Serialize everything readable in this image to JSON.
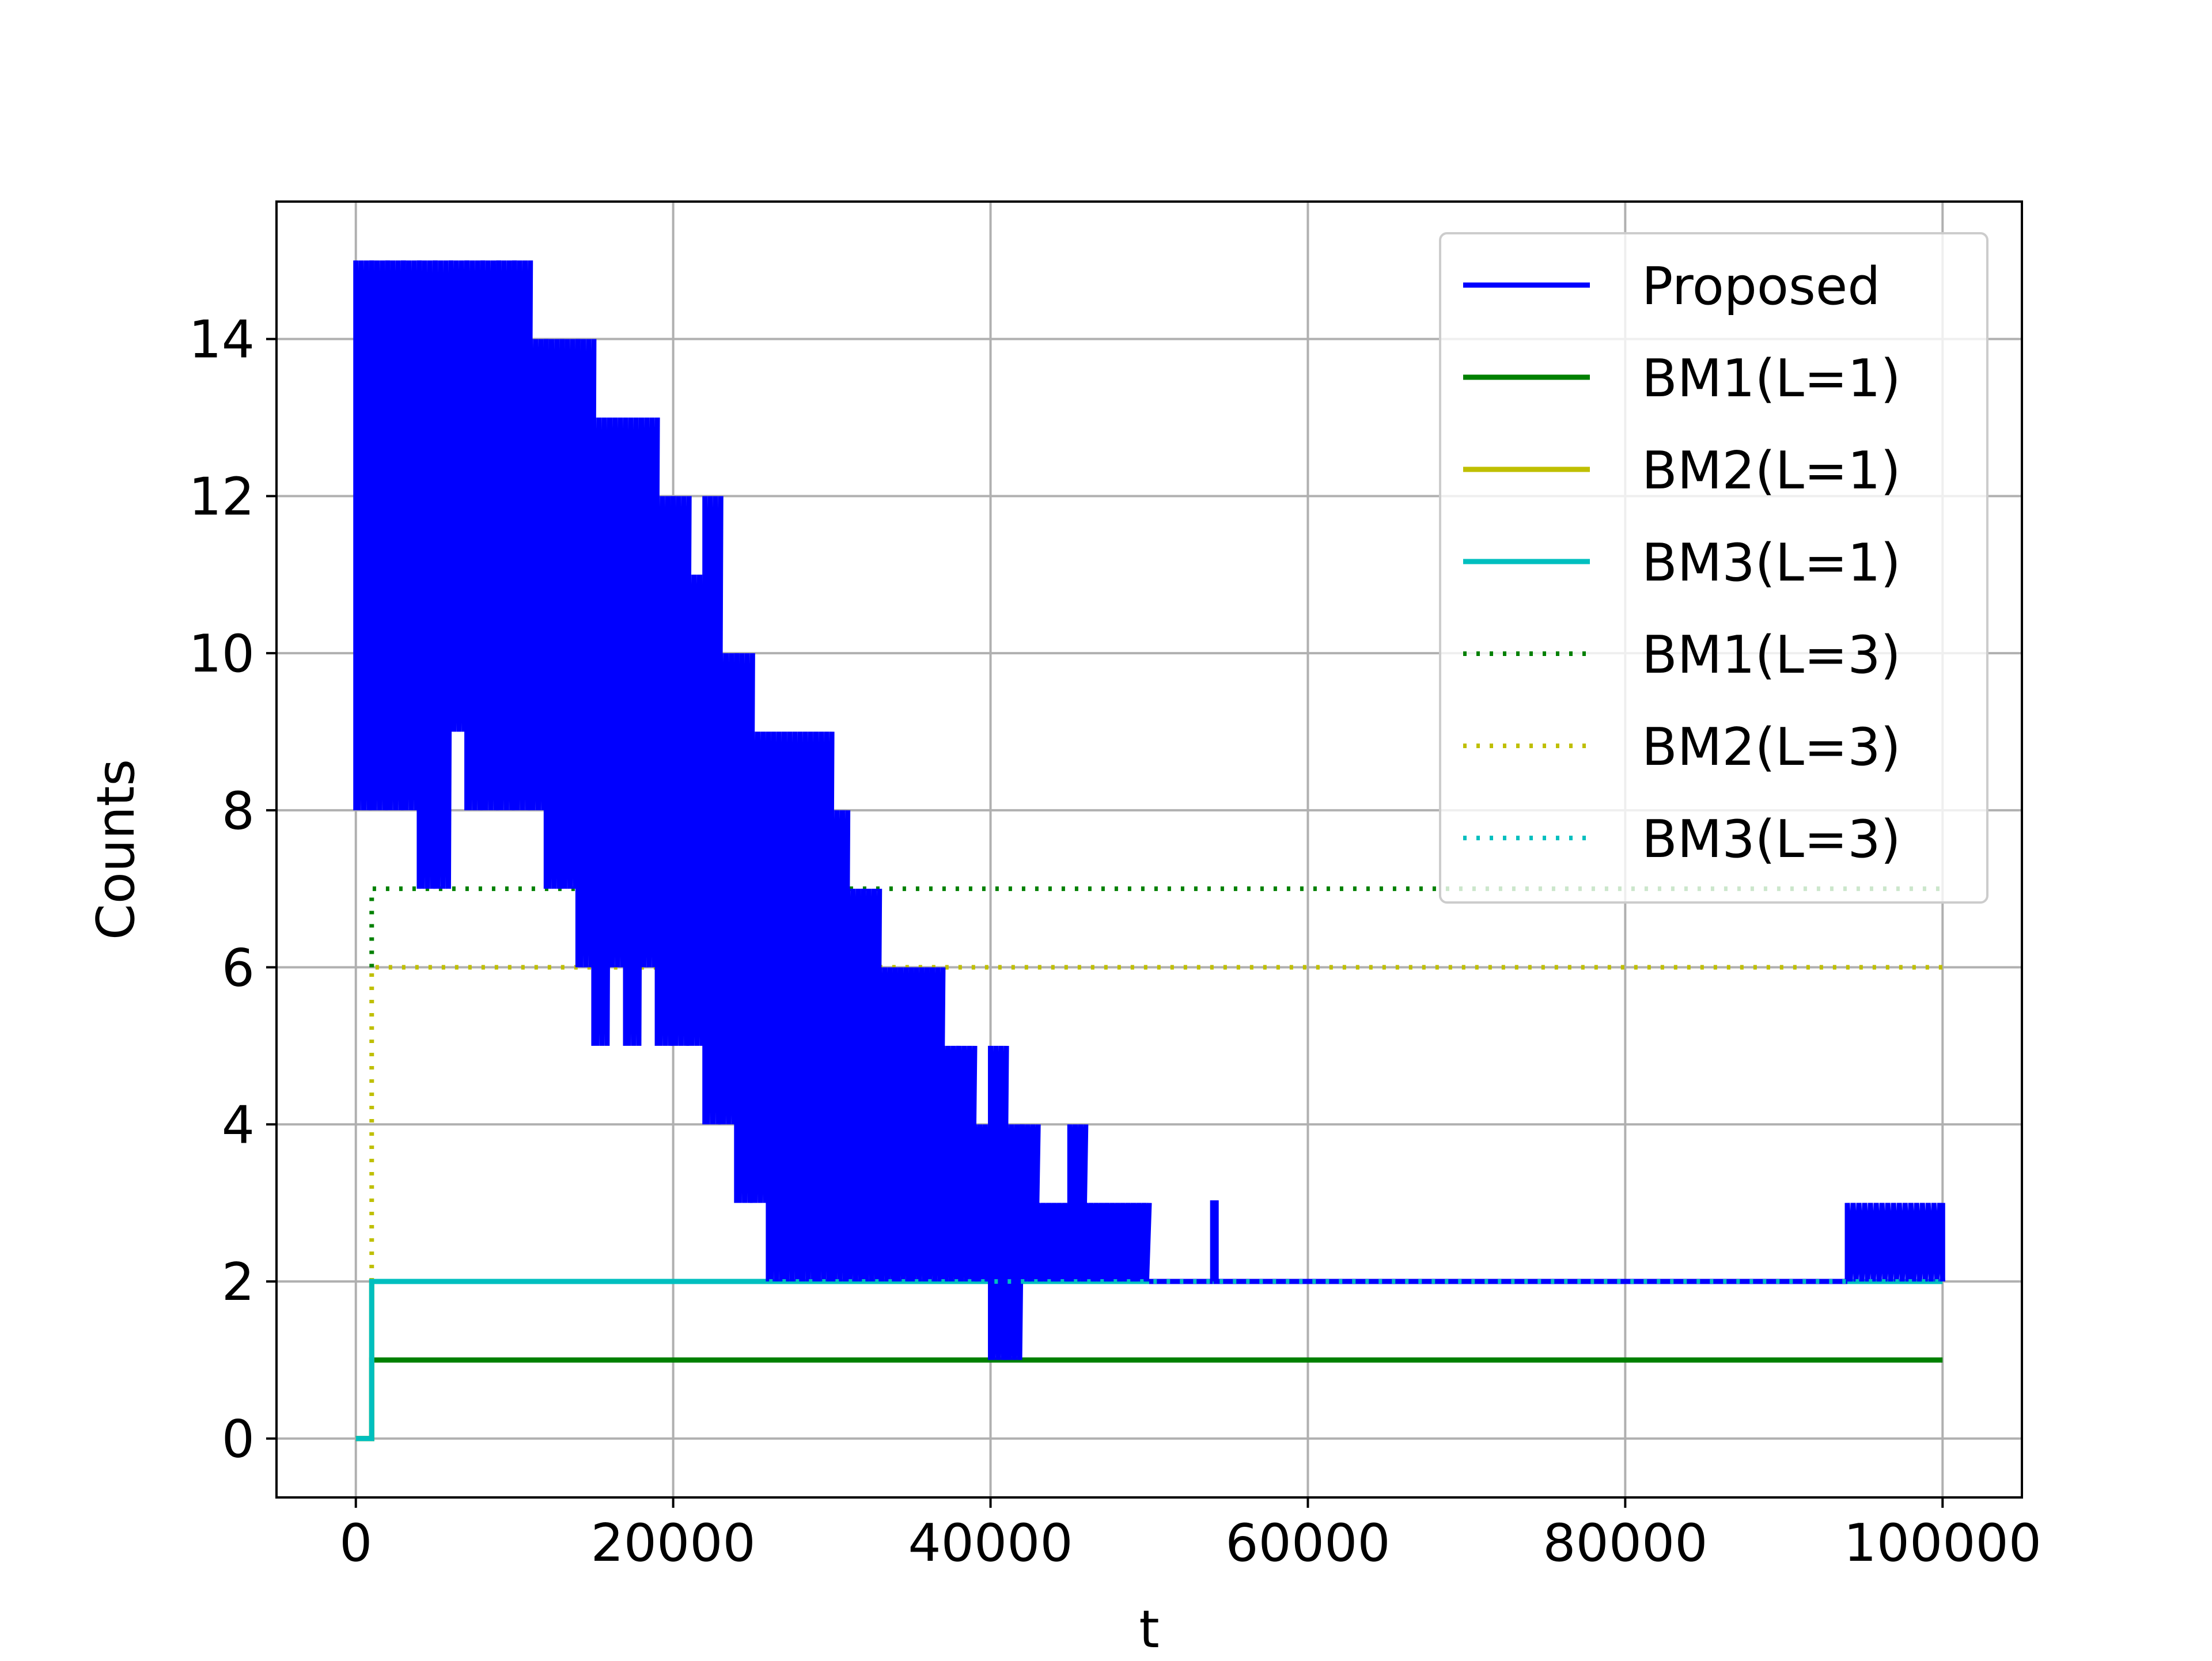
{
  "chart_data": {
    "type": "line",
    "title": "",
    "xlabel": "t",
    "ylabel": "Counts",
    "xlim": [
      -5000,
      105000
    ],
    "ylim": [
      -0.75,
      15.75
    ],
    "xticks": [
      0,
      20000,
      40000,
      60000,
      80000,
      100000
    ],
    "xtick_labels": [
      "0",
      "20000",
      "40000",
      "60000",
      "80000",
      "100000"
    ],
    "yticks": [
      0,
      2,
      4,
      6,
      8,
      10,
      12,
      14
    ],
    "ytick_labels": [
      "0",
      "2",
      "4",
      "6",
      "8",
      "10",
      "12",
      "14"
    ],
    "grid": true,
    "legend_position": "upper right",
    "series": [
      {
        "name": "Proposed",
        "color": "#0000ff",
        "style": "solid",
        "envelope_x": [
          0,
          1000,
          2000,
          3000,
          4000,
          5000,
          6000,
          7000,
          8000,
          9000,
          10000,
          11000,
          12000,
          13000,
          14000,
          15000,
          16000,
          17000,
          18000,
          19000,
          20000,
          21000,
          22000,
          23000,
          24000,
          25000,
          26000,
          27000,
          28000,
          29000,
          30000,
          31000,
          32000,
          33000,
          34000,
          35000,
          36000,
          37000,
          38000,
          39000,
          40000,
          41000,
          42000,
          43000,
          44000,
          45000,
          46000,
          47000,
          48000,
          49000,
          50000,
          54000,
          94000,
          98000,
          100000
        ],
        "envelope_max": [
          15,
          15,
          15,
          15,
          15,
          15,
          15,
          15,
          15,
          15,
          15,
          14,
          14,
          14,
          14,
          13,
          13,
          13,
          13,
          12,
          12,
          11,
          12,
          10,
          10,
          9,
          9,
          9,
          9,
          9,
          8,
          7,
          7,
          6,
          6,
          6,
          6,
          5,
          5,
          4,
          5,
          4,
          4,
          3,
          3,
          4,
          3,
          3,
          3,
          3,
          2,
          3,
          3,
          3,
          3
        ],
        "envelope_min": [
          8,
          8,
          8,
          8,
          7,
          7,
          9,
          8,
          8,
          8,
          8,
          8,
          7,
          7,
          6,
          5,
          6,
          5,
          6,
          5,
          5,
          5,
          4,
          4,
          3,
          3,
          2,
          2,
          2,
          2,
          2,
          2,
          2,
          2,
          2,
          2,
          2,
          2,
          2,
          2,
          1,
          1,
          2,
          2,
          2,
          2,
          2,
          2,
          2,
          2,
          2,
          2,
          2,
          2,
          2
        ]
      },
      {
        "name": "BM1(L=1)",
        "color": "#008000",
        "style": "solid",
        "x": [
          0,
          1000,
          1000,
          100000
        ],
        "values": [
          0,
          0,
          1,
          1
        ]
      },
      {
        "name": "BM2(L=1)",
        "color": "#bfbf00",
        "style": "solid",
        "x": [
          0,
          1000,
          1000,
          100000
        ],
        "values": [
          0,
          0,
          2,
          2
        ]
      },
      {
        "name": "BM3(L=1)",
        "color": "#00bfbf",
        "style": "solid",
        "x": [
          0,
          1000,
          1000,
          100000
        ],
        "values": [
          0,
          0,
          2,
          2
        ]
      },
      {
        "name": "BM1(L=3)",
        "color": "#008000",
        "style": "dotted",
        "x": [
          1000,
          1000,
          100000
        ],
        "values": [
          6,
          7,
          7
        ]
      },
      {
        "name": "BM2(L=3)",
        "color": "#bfbf00",
        "style": "dotted",
        "x": [
          1000,
          1000,
          100000
        ],
        "values": [
          2,
          6,
          6
        ]
      },
      {
        "name": "BM3(L=3)",
        "color": "#00bfbf",
        "style": "dotted",
        "x": [
          1000,
          1000,
          100000
        ],
        "values": [
          2,
          2,
          2
        ]
      }
    ]
  }
}
